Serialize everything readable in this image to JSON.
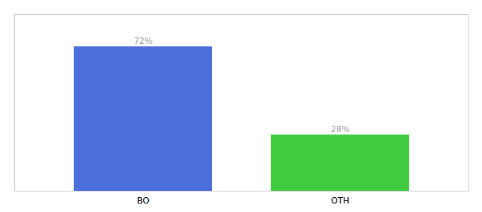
{
  "chart_data": {
    "type": "bar",
    "categories": [
      "BO",
      "OTH"
    ],
    "values": [
      72,
      28
    ],
    "value_labels": [
      "72%",
      "28%"
    ],
    "colors": [
      "#4a6edb",
      "#3ecc3e"
    ],
    "ylim": [
      0,
      88
    ],
    "data_labels": true,
    "tick_labels": "x",
    "grid": false
  }
}
